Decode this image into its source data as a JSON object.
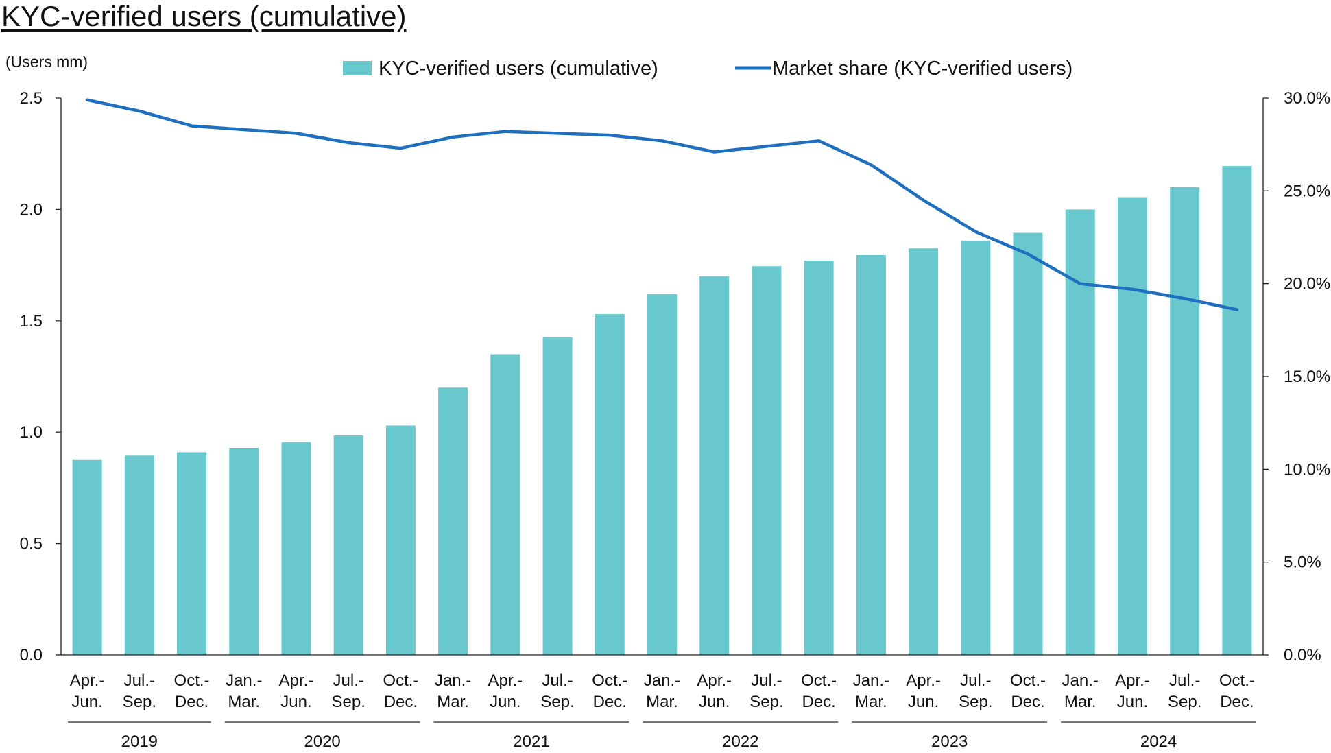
{
  "chart_data": {
    "title": "KYC-verified users (cumulative)",
    "type": "bar+line",
    "y_left_unit": "(Users mm)",
    "y_left_ticks": [
      "0.0",
      "0.5",
      "1.0",
      "1.5",
      "2.0",
      "2.5"
    ],
    "y_left_range": [
      0,
      2.5
    ],
    "y_right_ticks": [
      "0.0%",
      "5.0%",
      "10.0%",
      "15.0%",
      "20.0%",
      "25.0%",
      "30.0%"
    ],
    "y_right_range": [
      0,
      30
    ],
    "legend": {
      "placement": "top-center"
    },
    "categories": [
      [
        "Apr.-",
        "Jun."
      ],
      [
        "Jul.-",
        "Sep."
      ],
      [
        "Oct.-",
        "Dec."
      ],
      [
        "Jan.-",
        "Mar."
      ],
      [
        "Apr.-",
        "Jun."
      ],
      [
        "Jul.-",
        "Sep."
      ],
      [
        "Oct.-",
        "Dec."
      ],
      [
        "Jan.-",
        "Mar."
      ],
      [
        "Apr.-",
        "Jun."
      ],
      [
        "Jul.-",
        "Sep."
      ],
      [
        "Oct.-",
        "Dec."
      ],
      [
        "Jan.-",
        "Mar."
      ],
      [
        "Apr.-",
        "Jun."
      ],
      [
        "Jul.-",
        "Sep."
      ],
      [
        "Oct.-",
        "Dec."
      ],
      [
        "Jan.-",
        "Mar."
      ],
      [
        "Apr.-",
        "Jun."
      ],
      [
        "Jul.-",
        "Sep."
      ],
      [
        "Oct.-",
        "Dec."
      ],
      [
        "Jan.-",
        "Mar."
      ],
      [
        "Apr.-",
        "Jun."
      ],
      [
        "Jul.-",
        "Sep."
      ],
      [
        "Oct.-",
        "Dec."
      ]
    ],
    "year_groups": [
      {
        "label": "2019",
        "start": 0,
        "end": 2
      },
      {
        "label": "2020",
        "start": 3,
        "end": 6
      },
      {
        "label": "2021",
        "start": 7,
        "end": 10
      },
      {
        "label": "2022",
        "start": 11,
        "end": 14
      },
      {
        "label": "2023",
        "start": 15,
        "end": 18
      },
      {
        "label": "2024",
        "start": 19,
        "end": 22
      }
    ],
    "series": [
      {
        "name": "KYC-verified users (cumulative)",
        "type": "bar",
        "axis": "left",
        "color": "#68c8cd",
        "values": [
          0.875,
          0.895,
          0.91,
          0.93,
          0.955,
          0.985,
          1.03,
          1.2,
          1.35,
          1.425,
          1.53,
          1.62,
          1.7,
          1.745,
          1.77,
          1.795,
          1.825,
          1.86,
          1.895,
          2.0,
          2.055,
          2.1,
          2.195
        ]
      },
      {
        "name": "Market share (KYC-verified users)",
        "type": "line",
        "axis": "right",
        "color": "#1f6fbf",
        "values": [
          29.9,
          29.3,
          28.5,
          28.3,
          28.1,
          27.6,
          27.3,
          27.9,
          28.2,
          28.1,
          28.0,
          27.7,
          27.1,
          27.4,
          27.7,
          26.4,
          24.5,
          22.8,
          21.6,
          20.0,
          19.7,
          19.2,
          18.6
        ]
      }
    ]
  }
}
